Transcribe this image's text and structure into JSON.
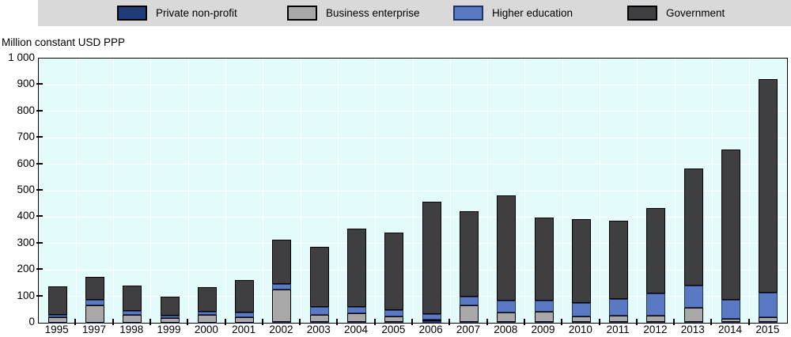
{
  "y_axis": {
    "title": "Million constant USD PPP",
    "tick_labels": [
      "1 000",
      "900",
      "800",
      "700",
      "600",
      "500",
      "400",
      "300",
      "200",
      "100",
      "0"
    ]
  },
  "colors": {
    "plot_background": "#E4FBFB",
    "legend_background": "#D9D9D9",
    "gridline": "#FFFFFF",
    "axis": "#000000"
  },
  "chart_data": {
    "type": "bar",
    "stacked": true,
    "title": "",
    "xlabel": "",
    "ylabel": "Million constant USD PPP",
    "ylim": [
      0,
      1000
    ],
    "y_tick_step": 100,
    "grid": true,
    "legend_position": "top",
    "note": "x axis skips 1996",
    "categories": [
      "1995",
      "1997",
      "1998",
      "1999",
      "2000",
      "2001",
      "2002",
      "2003",
      "2004",
      "2005",
      "2006",
      "2007",
      "2008",
      "2009",
      "2010",
      "2011",
      "2012",
      "2013",
      "2014",
      "2015"
    ],
    "series": [
      {
        "name": "Private non-profit",
        "color": "#1F3C78",
        "border": "#000000",
        "values": [
          1,
          1,
          1,
          1,
          1,
          1,
          2,
          2,
          2,
          2,
          5,
          2,
          2,
          2,
          2,
          2,
          2,
          2,
          2,
          2
        ]
      },
      {
        "name": "Business enterprise",
        "color": "#A8A8A8",
        "border": "#000000",
        "values": [
          20,
          65,
          30,
          17,
          30,
          20,
          125,
          27,
          33,
          22,
          6,
          65,
          36,
          40,
          21,
          26,
          26,
          54,
          13,
          19
        ]
      },
      {
        "name": "Higher education",
        "color": "#5B79C3",
        "border": "#1E3566",
        "values": [
          10,
          20,
          13,
          9,
          12,
          17,
          20,
          30,
          25,
          24,
          22,
          33,
          46,
          42,
          52,
          61,
          84,
          86,
          73,
          93
        ]
      },
      {
        "name": "Government",
        "color": "#3F3F41",
        "border": "#000000",
        "values": [
          107,
          89,
          96,
          73,
          92,
          125,
          166,
          229,
          295,
          294,
          425,
          322,
          398,
          314,
          318,
          296,
          321,
          443,
          567,
          808
        ]
      }
    ],
    "totals": [
      138,
      175,
      140,
      100,
      135,
      163,
      313,
      288,
      355,
      342,
      458,
      422,
      482,
      398,
      393,
      385,
      433,
      585,
      655,
      922
    ]
  }
}
